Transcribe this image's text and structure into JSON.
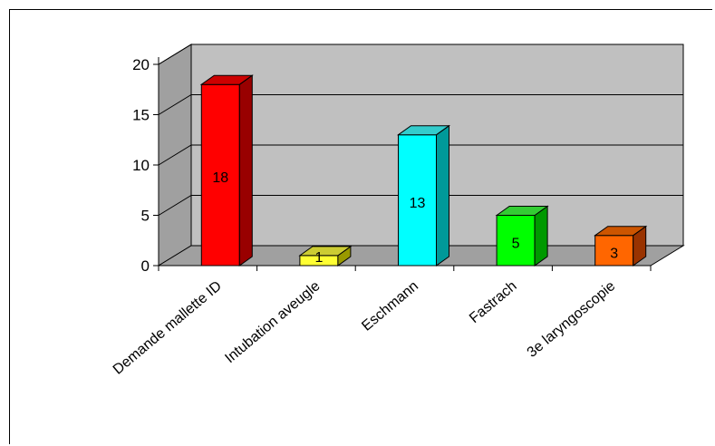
{
  "chart_data": {
    "type": "bar",
    "categories": [
      "Demande mallette ID",
      "Intubation aveugle",
      "Eschmann",
      "Fastrach",
      "3e laryngoscopie"
    ],
    "values": [
      18,
      1,
      13,
      5,
      3
    ],
    "data_labels": [
      "18",
      "1",
      "13",
      "5",
      "3"
    ],
    "y_ticks": [
      "0",
      "5",
      "10",
      "15",
      "20"
    ],
    "ylim": [
      0,
      20
    ],
    "grid": true,
    "three_d": true,
    "colors": {
      "bars": [
        "#ff0000",
        "#ffff33",
        "#00ffff",
        "#00ff00",
        "#ff6600"
      ],
      "sides": [
        "#990000",
        "#999900",
        "#009999",
        "#009900",
        "#993300"
      ],
      "tops": [
        "#cc0000",
        "#cccc33",
        "#33cccc",
        "#33cc33",
        "#cc5500"
      ],
      "wall": "#c0c0c0",
      "floor": "#a0a0a0"
    }
  }
}
